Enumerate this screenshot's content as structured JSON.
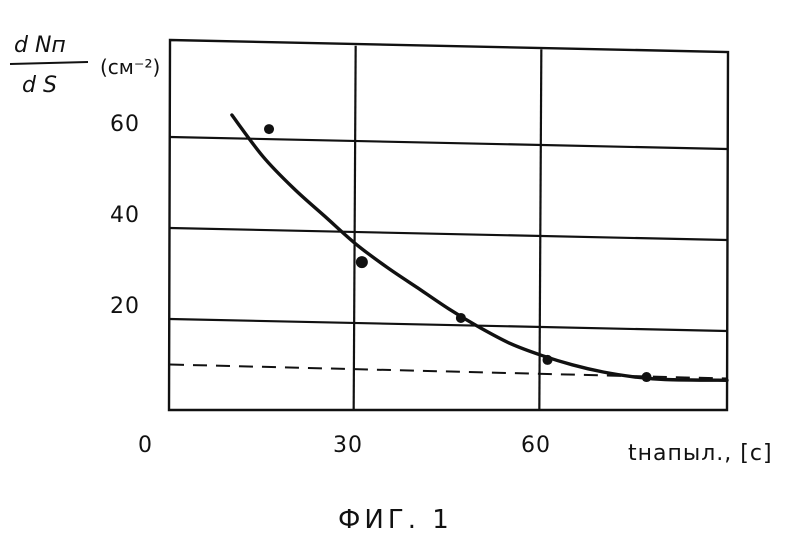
{
  "chart_data": {
    "type": "scatter",
    "x_tick_labels": [
      "0",
      "30",
      "60"
    ],
    "y_tick_labels": [
      "20",
      "40",
      "60"
    ],
    "xlabel": "tнапыл., [с]",
    "ylabel_numerator": "d Nп",
    "ylabel_denominator": "d S",
    "ylabel_unit": "(см⁻²)",
    "caption": "ФИГ. 1",
    "xlim": [
      0,
      90
    ],
    "ylim": [
      0,
      80
    ],
    "grid": true,
    "points": [
      {
        "x": 16,
        "y": 62
      },
      {
        "x": 31,
        "y": 33
      },
      {
        "x": 47,
        "y": 21
      },
      {
        "x": 61,
        "y": 12
      },
      {
        "x": 77,
        "y": 8.5
      }
    ],
    "fit_curve": [
      {
        "x": 10,
        "y": 65
      },
      {
        "x": 15,
        "y": 56
      },
      {
        "x": 20,
        "y": 49
      },
      {
        "x": 25,
        "y": 43
      },
      {
        "x": 30,
        "y": 37
      },
      {
        "x": 35,
        "y": 32
      },
      {
        "x": 40,
        "y": 27.5
      },
      {
        "x": 45,
        "y": 23
      },
      {
        "x": 50,
        "y": 19
      },
      {
        "x": 55,
        "y": 15.5
      },
      {
        "x": 60,
        "y": 13
      },
      {
        "x": 65,
        "y": 11
      },
      {
        "x": 70,
        "y": 9.5
      },
      {
        "x": 75,
        "y": 8.5
      },
      {
        "x": 80,
        "y": 8
      },
      {
        "x": 90,
        "y": 8
      }
    ],
    "asymptote_y": 10
  }
}
